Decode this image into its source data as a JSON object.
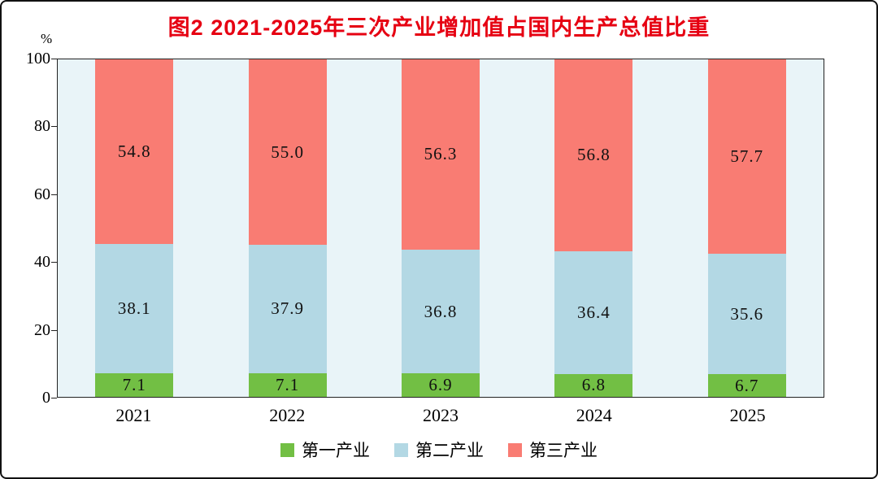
{
  "chart_data": {
    "type": "bar",
    "stacked": true,
    "title": "图2  2021-2025年三次产业增加值占国内生产总值比重",
    "title_color": "#e60012",
    "ylabel": "%",
    "ylim": [
      0,
      100
    ],
    "yticks": [
      0,
      20,
      40,
      60,
      80,
      100
    ],
    "grid": false,
    "legend_position": "bottom",
    "plot_background": "#e9f4f8",
    "categories": [
      "2021",
      "2022",
      "2023",
      "2024",
      "2025"
    ],
    "series": [
      {
        "name": "第一产业",
        "color": "#72bf44",
        "values": [
          7.1,
          7.1,
          6.9,
          6.8,
          6.7
        ]
      },
      {
        "name": "第二产业",
        "color": "#b3d8e4",
        "values": [
          38.1,
          37.9,
          36.8,
          36.4,
          35.6
        ]
      },
      {
        "name": "第三产业",
        "color": "#f97c73",
        "values": [
          54.8,
          55.0,
          56.3,
          56.8,
          57.7
        ]
      }
    ]
  }
}
